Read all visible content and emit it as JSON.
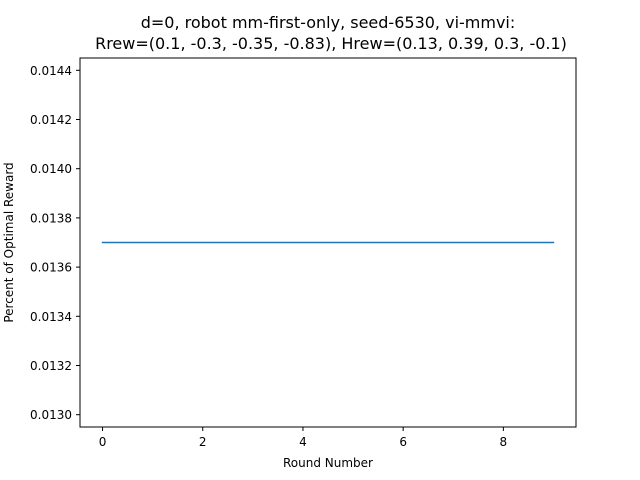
{
  "chart_data": {
    "type": "line",
    "title_lines": [
      "d=0, robot mm-first-only, seed-6530, vi-mmvi:",
      "Rrew=(0.1, -0.3, -0.35, -0.83), Hrew=(0.13, 0.39, 0.3, -0.1)"
    ],
    "xlabel": "Round Number",
    "ylabel": "Percent of Optimal Reward",
    "x": [
      0,
      1,
      2,
      3,
      4,
      5,
      6,
      7,
      8,
      9
    ],
    "series": [
      {
        "values": [
          0.0137,
          0.0137,
          0.0137,
          0.0137,
          0.0137,
          0.0137,
          0.0137,
          0.0137,
          0.0137,
          0.0137
        ],
        "color": "#1f77b4"
      }
    ],
    "xlim": [
      -0.45,
      9.45
    ],
    "ylim": [
      0.01295,
      0.01445
    ],
    "xticks": [
      0,
      2,
      4,
      6,
      8
    ],
    "xtick_labels": [
      "0",
      "2",
      "4",
      "6",
      "8"
    ],
    "yticks": [
      0.013,
      0.0132,
      0.0134,
      0.0136,
      0.0138,
      0.014,
      0.0142,
      0.0144
    ],
    "ytick_labels": [
      "0.0130",
      "0.0132",
      "0.0134",
      "0.0136",
      "0.0138",
      "0.0140",
      "0.0142",
      "0.0144"
    ],
    "grid": false,
    "legend": "none"
  }
}
